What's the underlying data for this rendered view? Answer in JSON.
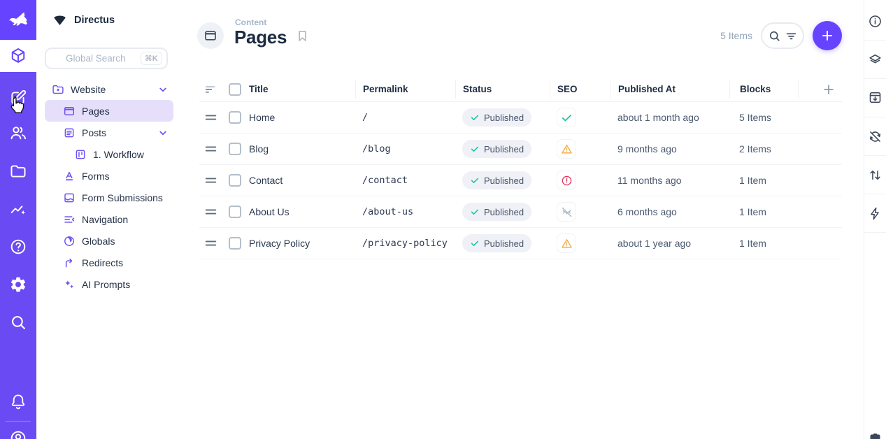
{
  "app": {
    "name": "Directus"
  },
  "colors": {
    "brand": "#6644ff",
    "module_bar": "#6a4af2",
    "nav_active_bg": "#e5dffc",
    "success": "#17c2a3",
    "warning": "#f5a63c",
    "danger": "#e0355c"
  },
  "module_bar": {
    "logo_icon": "directus-rabbit-logo",
    "items": [
      {
        "icon": "content-module-cube-icon",
        "active": true
      },
      {
        "icon": "editor-compose-icon"
      },
      {
        "icon": "users-icon"
      },
      {
        "icon": "files-folder-icon"
      },
      {
        "icon": "insights-chart-icon"
      },
      {
        "icon": "help-icon"
      },
      {
        "icon": "settings-gear-icon"
      },
      {
        "icon": "search-icon"
      },
      {
        "icon": "notifications-bell-icon"
      },
      {
        "icon": "account-circle-icon"
      }
    ]
  },
  "nav": {
    "project_name": "Directus",
    "project_logo_icon": "project-shield-mark",
    "search": {
      "placeholder": "Global Search",
      "shortcut": "⌘K"
    },
    "items": [
      {
        "label": "Website",
        "icon": "folder-star-icon",
        "level": 0,
        "expanded": true
      },
      {
        "label": "Pages",
        "icon": "window-icon",
        "level": 1,
        "active": true
      },
      {
        "label": "Posts",
        "icon": "article-icon",
        "level": 1,
        "expanded": true
      },
      {
        "label": "1. Workflow",
        "icon": "kanban-icon",
        "level": 2
      },
      {
        "label": "Forms",
        "icon": "title-letter-icon",
        "level": 1
      },
      {
        "label": "Form Submissions",
        "icon": "inbox-icon",
        "level": 1
      },
      {
        "label": "Navigation",
        "icon": "nav-list-icon",
        "level": 1
      },
      {
        "label": "Globals",
        "icon": "globe-icon",
        "level": 1
      },
      {
        "label": "Redirects",
        "icon": "redirect-arrow-icon",
        "level": 1
      },
      {
        "label": "AI Prompts",
        "icon": "sparkles-icon",
        "level": 1
      }
    ]
  },
  "header": {
    "breadcrumb": "Content",
    "title": "Pages",
    "collection_icon": "window-icon",
    "bookmark_icon": "bookmark-icon",
    "item_count": "5 Items",
    "toolbar_icons": [
      "search-icon",
      "filter-icon"
    ],
    "add_button_icon": "plus-icon"
  },
  "table": {
    "columns": {
      "title": "Title",
      "permalink": "Permalink",
      "status": "Status",
      "seo": "SEO",
      "published_at": "Published At",
      "blocks": "Blocks"
    },
    "rows": [
      {
        "title": "Home",
        "permalink": "/",
        "status": "Published",
        "seo": "check",
        "published_at": "about 1 month ago",
        "blocks": "5 Items"
      },
      {
        "title": "Blog",
        "permalink": "/blog",
        "status": "Published",
        "seo": "warning",
        "published_at": "9 months ago",
        "blocks": "2 Items"
      },
      {
        "title": "Contact",
        "permalink": "/contact",
        "status": "Published",
        "seo": "error",
        "published_at": "11 months ago",
        "blocks": "1 Item"
      },
      {
        "title": "About Us",
        "permalink": "/about-us",
        "status": "Published",
        "seo": "hidden",
        "published_at": "6 months ago",
        "blocks": "1 Item"
      },
      {
        "title": "Privacy Policy",
        "permalink": "/privacy-policy",
        "status": "Published",
        "seo": "warning",
        "published_at": "about 1 year ago",
        "blocks": "1 Item"
      }
    ]
  },
  "sidebar_right": {
    "icons": [
      "info-icon",
      "layers-icon",
      "archive-icon",
      "sync-disabled-icon",
      "import-export-icon",
      "bolt-icon",
      "drawer-icon"
    ]
  }
}
